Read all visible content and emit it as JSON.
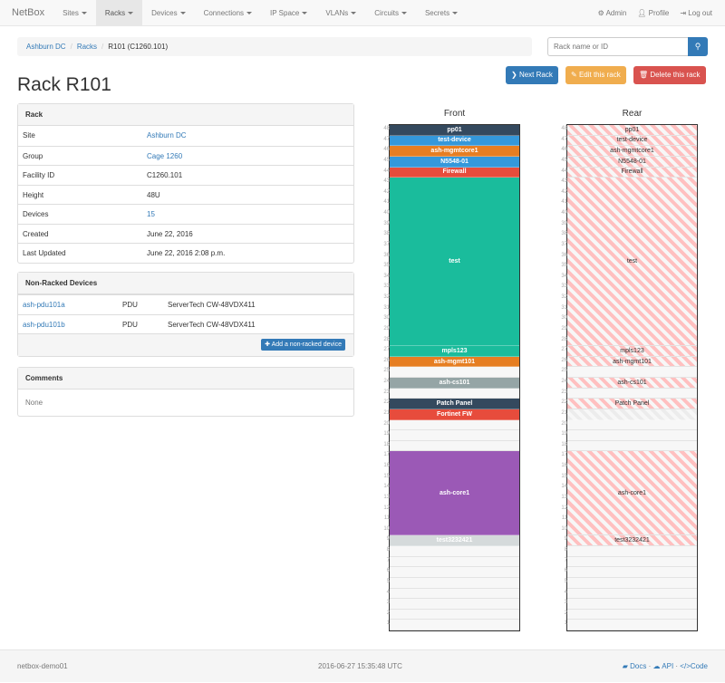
{
  "nav": {
    "brand": "NetBox",
    "items": [
      "Sites",
      "Racks",
      "Devices",
      "Connections",
      "IP Space",
      "VLANs",
      "Circuits",
      "Secrets"
    ],
    "active": "Racks",
    "right": [
      {
        "icon": "gear-icon",
        "label": "Admin"
      },
      {
        "icon": "user-icon",
        "label": "Profile"
      },
      {
        "icon": "logout-icon",
        "label": "Log out"
      }
    ]
  },
  "breadcrumb": [
    "Ashburn DC",
    "Racks",
    "R101 (C1260.101)"
  ],
  "search": {
    "placeholder": "Rack name or ID",
    "icon": "search-icon"
  },
  "buttons": {
    "next": "Next Rack",
    "edit": "Edit this rack",
    "delete": "Delete this rack"
  },
  "colors": {
    "primary": "#337ab7",
    "warning": "#f0ad4e",
    "danger": "#d9534f"
  },
  "title": "Rack R101",
  "rack_panel": {
    "heading": "Rack",
    "rows": [
      {
        "k": "Site",
        "v": "Ashburn DC",
        "link": true
      },
      {
        "k": "Group",
        "v": "Cage 1260",
        "link": true
      },
      {
        "k": "Facility ID",
        "v": "C1260.101",
        "link": false
      },
      {
        "k": "Height",
        "v": "48U",
        "link": false
      },
      {
        "k": "Devices",
        "v": "15",
        "link": true
      },
      {
        "k": "Created",
        "v": "June 22, 2016",
        "link": false
      },
      {
        "k": "Last Updated",
        "v": "June 22, 2016 2:08 p.m.",
        "link": false
      }
    ]
  },
  "nonracked": {
    "heading": "Non-Racked Devices",
    "rows": [
      {
        "name": "ash-pdu101a",
        "role": "PDU",
        "type": "ServerTech CW-48VDX411"
      },
      {
        "name": "ash-pdu101b",
        "role": "PDU",
        "type": "ServerTech CW-48VDX411"
      }
    ],
    "add_label": "Add a non-racked device"
  },
  "comments": {
    "heading": "Comments",
    "body": "None"
  },
  "rack": {
    "front_label": "Front",
    "rear_label": "Rear",
    "units": 48,
    "devices": [
      {
        "name": "pp01",
        "position": 48,
        "height": 1,
        "color": "#34495e",
        "full_depth": true
      },
      {
        "name": "test-device",
        "position": 47,
        "height": 1,
        "color": "#3498db",
        "full_depth": true
      },
      {
        "name": "ash-mgmtcore1",
        "position": 46,
        "height": 1,
        "color": "#e67e22",
        "full_depth": true
      },
      {
        "name": "N5548-01",
        "position": 45,
        "height": 1,
        "color": "#3498db",
        "full_depth": true
      },
      {
        "name": "Firewall",
        "position": 44,
        "height": 1,
        "color": "#e74c3c",
        "full_depth": true
      },
      {
        "name": "test",
        "position": 28,
        "height": 16,
        "color": "#1abc9c",
        "full_depth": true
      },
      {
        "name": "mpls123",
        "position": 27,
        "height": 1,
        "color": "#1abc9c",
        "full_depth": true
      },
      {
        "name": "ash-mgmt101",
        "position": 26,
        "height": 1,
        "color": "#e67e22",
        "full_depth": true
      },
      {
        "name": "ash-cs101",
        "position": 24,
        "height": 1,
        "color": "#95a5a6",
        "full_depth": true
      },
      {
        "name": "Patch Panel",
        "position": 22,
        "height": 1,
        "color": "#34495e",
        "full_depth": true
      },
      {
        "name": "Fortinet FW",
        "position": 21,
        "height": 1,
        "color": "#e74c3c",
        "full_depth": false
      },
      {
        "name": "ash-core1",
        "position": 10,
        "height": 8,
        "color": "#9b59b6",
        "full_depth": true
      },
      {
        "name": "test3232421",
        "position": 9,
        "height": 1,
        "color": "#d5dadb",
        "full_depth": true
      }
    ]
  },
  "footer": {
    "host": "netbox-demo01",
    "time": "2016-06-27 15:35:48 UTC",
    "links": [
      "Docs",
      "API",
      "Code"
    ]
  }
}
